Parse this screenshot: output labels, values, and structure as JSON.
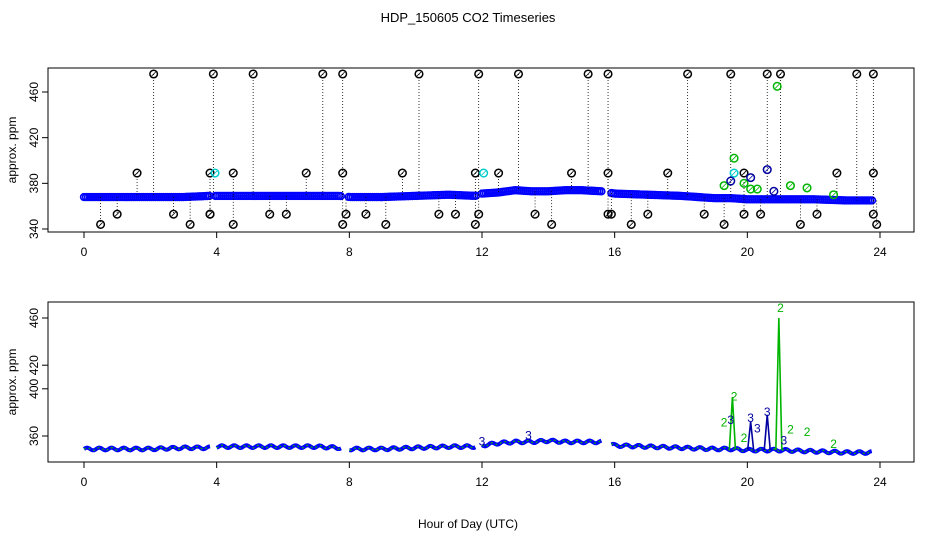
{
  "title": "HDP_150605  CO2 Timeseries",
  "xlabel": "Hour of Day (UTC)",
  "colors": {
    "black": "#000000",
    "blue": "#0000ff",
    "cyan": "#00cccc",
    "green": "#00b400",
    "darkblue": "#0000a0"
  },
  "chart_data": [
    {
      "type": "scatter",
      "title": "HDP_150605  CO2 Timeseries",
      "xlabel": "",
      "ylabel": "approx. ppm",
      "xlim": [
        0,
        24
      ],
      "ylim": [
        340,
        480
      ],
      "x_ticks": [
        "0",
        "4",
        "8",
        "12",
        "16",
        "20",
        "24"
      ],
      "y_ticks": [
        "340",
        "380",
        "420",
        "460"
      ],
      "baseline": [
        [
          0,
          368
        ],
        [
          1,
          368
        ],
        [
          2,
          368
        ],
        [
          3,
          368
        ],
        [
          3.8,
          369
        ],
        [
          4,
          369
        ],
        [
          5,
          369
        ],
        [
          6,
          369
        ],
        [
          7,
          369
        ],
        [
          7.7,
          369
        ],
        [
          8,
          368
        ],
        [
          9,
          368
        ],
        [
          10,
          369
        ],
        [
          11,
          370
        ],
        [
          11.8,
          369
        ],
        [
          12,
          371
        ],
        [
          12.5,
          372
        ],
        [
          13,
          374
        ],
        [
          13.5,
          373
        ],
        [
          14,
          373
        ],
        [
          14.5,
          374
        ],
        [
          15,
          374
        ],
        [
          15.6,
          373
        ],
        [
          16,
          371
        ],
        [
          17,
          370
        ],
        [
          18,
          369
        ],
        [
          19,
          367
        ],
        [
          19.5,
          367
        ],
        [
          20,
          366
        ],
        [
          21,
          366
        ],
        [
          22,
          366
        ],
        [
          23,
          365
        ],
        [
          23.8,
          365
        ]
      ],
      "black_spikes_high": [
        2.1,
        3.9,
        5.1,
        7.2,
        7.8,
        10.1,
        11.9,
        13.1,
        15.2,
        15.8,
        18.2,
        19.5,
        20.6,
        21.0,
        23.3,
        23.8
      ],
      "black_mid": [
        1.6,
        3.8,
        4.5,
        6.7,
        7.8,
        9.6,
        11.8,
        12.5,
        14.7,
        15.8,
        17.6,
        19.9,
        22.7,
        23.8
      ],
      "black_low": [
        0.5,
        1.0,
        2.7,
        3.2,
        3.8,
        3.8,
        4.5,
        5.6,
        6.1,
        7.8,
        7.9,
        8.5,
        9.1,
        10.7,
        11.2,
        11.8,
        11.9,
        13.6,
        14.1,
        15.8,
        15.9,
        16.5,
        17.0,
        18.7,
        19.3,
        19.9,
        20.4,
        21.6,
        22.1,
        23.8,
        23.9
      ],
      "cyan_points": [
        [
          3.95,
          389
        ],
        [
          12.05,
          389
        ],
        [
          19.6,
          389
        ]
      ],
      "green_points": [
        [
          19.3,
          378
        ],
        [
          19.6,
          402
        ],
        [
          19.9,
          380
        ],
        [
          20.1,
          375
        ],
        [
          20.3,
          375
        ],
        [
          20.9,
          465
        ],
        [
          21.3,
          378
        ],
        [
          21.8,
          376
        ],
        [
          22.6,
          370
        ]
      ],
      "darkblue_points": [
        [
          19.5,
          382
        ],
        [
          20.1,
          385
        ],
        [
          20.6,
          392
        ],
        [
          20.8,
          373
        ]
      ]
    },
    {
      "type": "line",
      "title": "",
      "xlabel": "Hour of Day (UTC)",
      "ylabel": "approx. ppm",
      "xlim": [
        0,
        24
      ],
      "ylim": [
        340,
        470
      ],
      "x_ticks": [
        "0",
        "4",
        "8",
        "12",
        "16",
        "20",
        "24"
      ],
      "y_ticks": [
        "360",
        "400",
        "420",
        "460"
      ],
      "series_line": [
        [
          0,
          349
        ],
        [
          1,
          349
        ],
        [
          2,
          349
        ],
        [
          3,
          350
        ],
        [
          3.8,
          350
        ],
        [
          4,
          351
        ],
        [
          5,
          351
        ],
        [
          6,
          351
        ],
        [
          7,
          351
        ],
        [
          7.7,
          350
        ],
        [
          8,
          349
        ],
        [
          9,
          349
        ],
        [
          10,
          350
        ],
        [
          11,
          351
        ],
        [
          11.8,
          351
        ],
        [
          12,
          352
        ],
        [
          12.5,
          354
        ],
        [
          13,
          355
        ],
        [
          13.5,
          355
        ],
        [
          14,
          356
        ],
        [
          14.5,
          355
        ],
        [
          15,
          355
        ],
        [
          15.6,
          355
        ],
        [
          16,
          352
        ],
        [
          17,
          351
        ],
        [
          18,
          350
        ],
        [
          19,
          349
        ],
        [
          19.5,
          349
        ],
        [
          20,
          348
        ],
        [
          21,
          348
        ],
        [
          22,
          347
        ],
        [
          23,
          346
        ],
        [
          23.8,
          346
        ]
      ],
      "labels_2": [
        [
          19.6,
          390,
          "2"
        ],
        [
          19.3,
          368,
          "2"
        ],
        [
          21.0,
          465,
          "2"
        ],
        [
          21.3,
          362,
          "2"
        ],
        [
          21.8,
          360,
          "2"
        ],
        [
          19.9,
          355,
          "2"
        ],
        [
          22.6,
          350,
          "2"
        ]
      ],
      "labels_3": [
        [
          19.5,
          370,
          "3"
        ],
        [
          20.1,
          372,
          "3"
        ],
        [
          20.6,
          377,
          "3"
        ],
        [
          20.3,
          363,
          "3"
        ],
        [
          21.1,
          353,
          "3"
        ],
        [
          12.0,
          352,
          "3"
        ],
        [
          13.4,
          357,
          "3"
        ]
      ],
      "peaks": [
        [
          19.55,
          393
        ],
        [
          20.1,
          372
        ],
        [
          20.6,
          378
        ],
        [
          20.95,
          460
        ]
      ]
    }
  ]
}
